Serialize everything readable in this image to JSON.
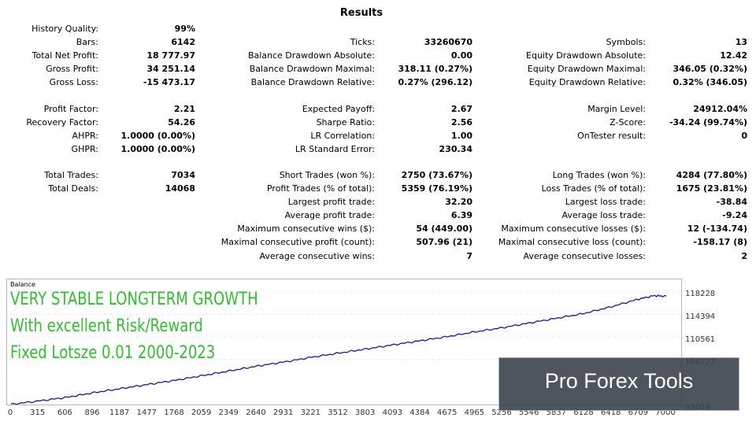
{
  "report": {
    "title": "Results",
    "col1": [
      {
        "label": "History Quality:",
        "value": "99%"
      },
      {
        "label": "Bars:",
        "value": "6142"
      },
      {
        "label": "Total Net Profit:",
        "value": "18 777.97"
      },
      {
        "label": "Gross Profit:",
        "value": "34 251.14"
      },
      {
        "label": "Gross Loss:",
        "value": "-15 473.17"
      },
      {
        "label": "Profit Factor:",
        "value": "2.21"
      },
      {
        "label": "Recovery Factor:",
        "value": "54.26"
      },
      {
        "label": "AHPR:",
        "value": "1.0000 (0.00%)"
      },
      {
        "label": "GHPR:",
        "value": "1.0000 (0.00%)"
      },
      {
        "label": "Total Trades:",
        "value": "7034"
      },
      {
        "label": "Total Deals:",
        "value": "14068"
      }
    ],
    "col2": [
      {
        "label": "Ticks:",
        "value": "33260670"
      },
      {
        "label": "Balance Drawdown Absolute:",
        "value": "0.00"
      },
      {
        "label": "Balance Drawdown Maximal:",
        "value": "318.11 (0.27%)"
      },
      {
        "label": "Balance Drawdown Relative:",
        "value": "0.27% (296.12)"
      },
      {
        "label": "Expected Payoff:",
        "value": "2.67"
      },
      {
        "label": "Sharpe Ratio:",
        "value": "2.56"
      },
      {
        "label": "LR Correlation:",
        "value": "1.00"
      },
      {
        "label": "LR Standard Error:",
        "value": "230.34"
      },
      {
        "label": "Short Trades (won %):",
        "value": "2750 (73.67%)"
      },
      {
        "label": "Profit Trades (% of total):",
        "value": "5359 (76.19%)"
      },
      {
        "label": "Largest profit trade:",
        "value": "32.20"
      },
      {
        "label": "Average profit trade:",
        "value": "6.39"
      },
      {
        "label": "Maximum consecutive wins ($):",
        "value": "54 (449.00)"
      },
      {
        "label": "Maximal consecutive profit (count):",
        "value": "507.96 (21)"
      },
      {
        "label": "Average consecutive wins:",
        "value": "7"
      }
    ],
    "col3": [
      {
        "label": "Symbols:",
        "value": "13"
      },
      {
        "label": "Equity Drawdown Absolute:",
        "value": "12.42"
      },
      {
        "label": "Equity Drawdown Maximal:",
        "value": "346.05 (0.32%)"
      },
      {
        "label": "Equity Drawdown Relative:",
        "value": "0.32% (346.05)"
      },
      {
        "label": "Margin Level:",
        "value": "24912.04%"
      },
      {
        "label": "Z-Score:",
        "value": "-34.24 (99.74%)"
      },
      {
        "label": "OnTester result:",
        "value": "0"
      },
      {
        "label": "Long Trades (won %):",
        "value": "4284 (77.80%)"
      },
      {
        "label": "Loss Trades (% of total):",
        "value": "1675 (23.81%)"
      },
      {
        "label": "Largest loss trade:",
        "value": "-38.84"
      },
      {
        "label": "Average loss trade:",
        "value": "-9.24"
      },
      {
        "label": "Maximum consecutive losses ($):",
        "value": "12 (-134.74)"
      },
      {
        "label": "Maximal consecutive loss (count):",
        "value": "-158.17 (8)"
      },
      {
        "label": "Average consecutive losses:",
        "value": "2"
      }
    ]
  },
  "chart": {
    "caption": "Balance",
    "overlay_lines": [
      "VERY STABLE LONGTERM GROWTH",
      "With excellent Risk/Reward",
      "Fixed Lotsze 0.01 2000-2023"
    ],
    "y_ticks": [
      "118228",
      "114394",
      "110561",
      "106727",
      "99059"
    ],
    "x_ticks": [
      "0",
      "315",
      "606",
      "896",
      "1187",
      "1477",
      "1768",
      "2059",
      "2349",
      "2640",
      "2931",
      "3221",
      "3512",
      "3803",
      "4093",
      "4384",
      "4675",
      "4965",
      "5256",
      "5546",
      "5837",
      "6128",
      "6418",
      "6709",
      "7000"
    ],
    "line_color": "#1a1a8c",
    "overlay_color": "#2fbf2f"
  },
  "chart_data": {
    "type": "line",
    "caption": "Balance",
    "x": [
      0,
      315,
      606,
      896,
      1187,
      1477,
      1768,
      2059,
      2349,
      2640,
      2931,
      3221,
      3512,
      3803,
      4093,
      4384,
      4675,
      4965,
      5256,
      5546,
      5837,
      6128,
      6418,
      6709,
      6900,
      7034
    ],
    "y": [
      99100,
      99700,
      100300,
      101100,
      101800,
      102500,
      103200,
      104000,
      104800,
      105600,
      106300,
      107100,
      107800,
      108500,
      109200,
      109900,
      110600,
      111400,
      112100,
      112900,
      113700,
      114500,
      115600,
      116900,
      117600,
      117500
    ],
    "xlim": [
      0,
      7034
    ],
    "ylim": [
      99059,
      118228
    ],
    "y_ticks": [
      118228,
      114394,
      110561,
      106727,
      99059
    ]
  },
  "banner": {
    "text": "Pro Forex Tools"
  }
}
